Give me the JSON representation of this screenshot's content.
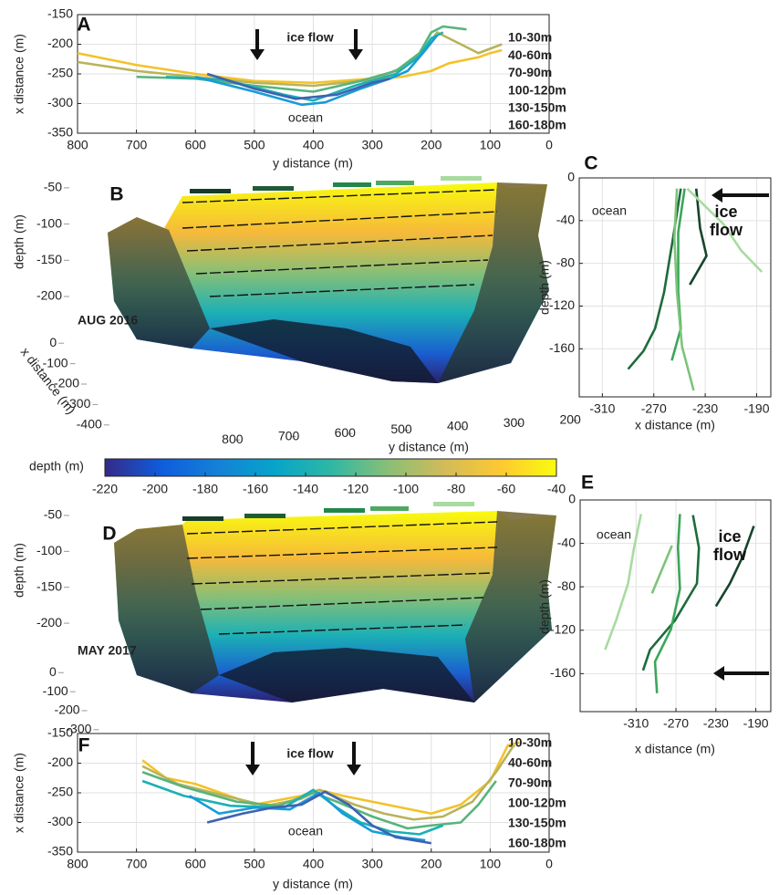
{
  "chart_data": [
    {
      "type": "line",
      "panel": "A",
      "xlabel": "y distance (m)",
      "ylabel": "x distance (m)",
      "xlim": [
        800,
        0
      ],
      "xticks": [
        800,
        700,
        600,
        500,
        400,
        300,
        200,
        100,
        0
      ],
      "ylim": [
        -350,
        -150
      ],
      "yticks": [
        -150,
        -200,
        -250,
        -300,
        -350
      ],
      "grid": true,
      "annotations": [
        "ice flow",
        "ocean"
      ],
      "series": [
        {
          "name": "10-30m",
          "color": "#f3c22a",
          "x": [
            800,
            700,
            600,
            500,
            400,
            300,
            250,
            200,
            170,
            120,
            100,
            80
          ],
          "values": [
            -215,
            -235,
            -250,
            -262,
            -265,
            -258,
            -255,
            -245,
            -232,
            -222,
            -215,
            -210
          ]
        },
        {
          "name": "40-60m",
          "color": "#b8b35a",
          "x": [
            800,
            700,
            600,
            500,
            400,
            300,
            250,
            210,
            190,
            160,
            120,
            80
          ],
          "values": [
            -230,
            -245,
            -255,
            -265,
            -270,
            -260,
            -240,
            -210,
            -180,
            -195,
            -215,
            -200
          ]
        },
        {
          "name": "70-90m",
          "color": "#58b47b",
          "x": [
            700,
            600,
            500,
            400,
            320,
            260,
            220,
            200,
            180,
            140
          ],
          "values": [
            -255,
            -258,
            -270,
            -280,
            -262,
            -245,
            -215,
            -180,
            -170,
            -175
          ]
        },
        {
          "name": "100-120m",
          "color": "#1bb0b5",
          "x": [
            650,
            550,
            450,
            400,
            330,
            260,
            220,
            200,
            180
          ],
          "values": [
            -255,
            -260,
            -285,
            -295,
            -270,
            -250,
            -220,
            -190,
            -180
          ]
        },
        {
          "name": "130-150m",
          "color": "#199bd6",
          "x": [
            600,
            500,
            420,
            380,
            320,
            270,
            240,
            210,
            190
          ],
          "values": [
            -255,
            -280,
            -302,
            -298,
            -275,
            -258,
            -245,
            -210,
            -185
          ]
        },
        {
          "name": "160-180m",
          "color": "#3d62b0",
          "x": [
            580,
            500,
            430,
            360,
            300,
            270
          ],
          "values": [
            -250,
            -275,
            -292,
            -285,
            -265,
            -258
          ]
        }
      ]
    },
    {
      "type": "surface3d",
      "panel": "B",
      "annotation": "AUG 2016",
      "zlabel": "depth (m)",
      "zlim": [
        -230,
        -25
      ],
      "zticks": [
        -50,
        -100,
        -150,
        -200
      ],
      "xlabel": "x distance (m)",
      "xlim": [
        -450,
        50
      ],
      "xticks": [
        0,
        -100,
        -200,
        -300,
        -400
      ],
      "ylabel": "y distance (m)",
      "ylim": [
        850,
        150
      ],
      "yticks": [
        800,
        700,
        600,
        500,
        400,
        300,
        200
      ]
    },
    {
      "type": "line",
      "panel": "C",
      "xlabel": "x distance (m)",
      "ylabel": "depth (m)",
      "xlim": [
        -328,
        -179
      ],
      "xticks": [
        -310,
        -270,
        -230,
        -190
      ],
      "ylim": [
        -205,
        0
      ],
      "yticks": [
        0,
        -40,
        -80,
        -120,
        -160
      ],
      "grid": true,
      "annotations": [
        "ocean",
        "ice flow"
      ],
      "series": [
        {
          "color": "#17452b",
          "x": [
            -237,
            -234,
            -229,
            -242
          ],
          "values": [
            -10,
            -47,
            -73,
            -100
          ]
        },
        {
          "color": "#1e6b3c",
          "x": [
            -249,
            -255,
            -262,
            -269,
            -278,
            -290
          ],
          "values": [
            -10,
            -56,
            -107,
            -141,
            -162,
            -179
          ]
        },
        {
          "color": "#3aa65a",
          "x": [
            -246,
            -251,
            -251,
            -249,
            -256
          ],
          "values": [
            -10,
            -51,
            -107,
            -141,
            -171
          ]
        },
        {
          "color": "#7cc47a",
          "x": [
            -252,
            -254,
            -252,
            -248,
            -239
          ],
          "values": [
            -10,
            -56,
            -107,
            -158,
            -199
          ]
        },
        {
          "color": "#a8dba0",
          "x": [
            -244,
            -216,
            -202,
            -186
          ],
          "values": [
            -10,
            -43,
            -68,
            -88
          ]
        }
      ]
    },
    {
      "type": "colorbar",
      "label": "depth (m)",
      "lim": [
        -220,
        -40
      ],
      "ticks": [
        -220,
        -200,
        -180,
        -160,
        -140,
        -120,
        -100,
        -80,
        -60,
        -40
      ],
      "colormap": [
        "#352a87",
        "#0f5cdd",
        "#1481d6",
        "#06a4ca",
        "#2eb7a4",
        "#87bf77",
        "#d1bb59",
        "#fec832",
        "#f9fb0e"
      ]
    },
    {
      "type": "surface3d",
      "panel": "D",
      "annotation": "MAY 2017",
      "zlabel": "depth (m)",
      "zlim": [
        -230,
        -25
      ],
      "zticks": [
        -50,
        -100,
        -150,
        -200
      ],
      "xlim": [
        -320,
        30
      ],
      "xticks": [
        0,
        -100,
        -200,
        -300
      ]
    },
    {
      "type": "line",
      "panel": "E",
      "xlabel": "x distance (m)",
      "ylabel": "depth (m)",
      "xlim": [
        -366,
        -175
      ],
      "xticks": [
        -310,
        -270,
        -230,
        -190
      ],
      "ylim": [
        -195,
        0
      ],
      "yticks": [
        0,
        -40,
        -80,
        -120,
        -160
      ],
      "grid": true,
      "annotations": [
        "ocean",
        "ice flow"
      ],
      "series": [
        {
          "color": "#17452b",
          "x": [
            -192,
            -203,
            -216,
            -230
          ],
          "values": [
            -24,
            -52,
            -77,
            -98
          ]
        },
        {
          "color": "#1e6b3c",
          "x": [
            -253,
            -247,
            -249,
            -271,
            -296,
            -303
          ],
          "values": [
            -14,
            -44,
            -77,
            -111,
            -138,
            -157
          ]
        },
        {
          "color": "#3aa65a",
          "x": [
            -266,
            -268,
            -266,
            -275,
            -291,
            -289
          ],
          "values": [
            -13,
            -44,
            -82,
            -119,
            -149,
            -178
          ]
        },
        {
          "color": "#7cc47a",
          "x": [
            -274,
            -284,
            -294
          ],
          "values": [
            -42,
            -64,
            -86
          ]
        },
        {
          "color": "#a8dba0",
          "x": [
            -305,
            -312,
            -318,
            -330,
            -341
          ],
          "values": [
            -13,
            -44,
            -77,
            -111,
            -138
          ]
        }
      ]
    },
    {
      "type": "line",
      "panel": "F",
      "xlabel": "y distance (m)",
      "ylabel": "x distance (m)",
      "xlim": [
        800,
        0
      ],
      "xticks": [
        800,
        700,
        600,
        500,
        400,
        300,
        200,
        100,
        0
      ],
      "ylim": [
        -350,
        -150
      ],
      "yticks": [
        -150,
        -200,
        -250,
        -300,
        -350
      ],
      "grid": true,
      "annotations": [
        "ice flow",
        "ocean"
      ],
      "series": [
        {
          "name": "10-30m",
          "color": "#f3c22a",
          "x": [
            690,
            650,
            600,
            500,
            420,
            390,
            350,
            300,
            250,
            200,
            150,
            100,
            70,
            50
          ],
          "values": [
            -195,
            -225,
            -235,
            -270,
            -255,
            -245,
            -255,
            -265,
            -275,
            -285,
            -270,
            -230,
            -170,
            -165
          ]
        },
        {
          "name": "40-60m",
          "color": "#b8b35a",
          "x": [
            690,
            630,
            550,
            480,
            420,
            390,
            330,
            280,
            230,
            180,
            130,
            90,
            60
          ],
          "values": [
            -205,
            -235,
            -255,
            -272,
            -260,
            -245,
            -270,
            -285,
            -295,
            -290,
            -265,
            -215,
            -170
          ]
        },
        {
          "name": "70-90m",
          "color": "#58b47b",
          "x": [
            690,
            620,
            530,
            460,
            400,
            360,
            300,
            240,
            200,
            150,
            120,
            90
          ],
          "values": [
            -215,
            -240,
            -265,
            -272,
            -250,
            -265,
            -290,
            -310,
            -305,
            -300,
            -270,
            -230
          ]
        },
        {
          "name": "100-120m",
          "color": "#1bb0b5",
          "x": [
            690,
            620,
            540,
            450,
            400,
            360,
            320,
            270,
            220,
            180
          ],
          "values": [
            -230,
            -255,
            -272,
            -275,
            -245,
            -275,
            -300,
            -315,
            -320,
            -305
          ]
        },
        {
          "name": "130-150m",
          "color": "#199bd6",
          "x": [
            610,
            560,
            500,
            440,
            390,
            350,
            300,
            250,
            210
          ],
          "values": [
            -255,
            -285,
            -275,
            -278,
            -250,
            -285,
            -315,
            -325,
            -330
          ]
        },
        {
          "name": "160-180m",
          "color": "#3d62b0",
          "x": [
            580,
            520,
            470,
            420,
            380,
            340,
            300,
            260,
            200
          ],
          "values": [
            -300,
            -285,
            -275,
            -270,
            -248,
            -270,
            -305,
            -325,
            -335
          ]
        }
      ]
    }
  ]
}
